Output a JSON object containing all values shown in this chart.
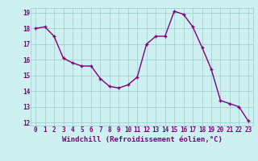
{
  "x": [
    0,
    1,
    2,
    3,
    4,
    5,
    6,
    7,
    8,
    9,
    10,
    11,
    12,
    13,
    14,
    15,
    16,
    17,
    18,
    19,
    20,
    21,
    22,
    23
  ],
  "y": [
    18.0,
    18.1,
    17.5,
    16.1,
    15.8,
    15.6,
    15.6,
    14.8,
    14.3,
    14.2,
    14.4,
    14.9,
    17.0,
    17.5,
    17.5,
    19.1,
    18.9,
    18.1,
    16.8,
    15.4,
    13.4,
    13.2,
    13.0,
    12.1
  ],
  "line_color": "#800080",
  "marker_color": "#800080",
  "bg_color": "#cff0f0",
  "grid_color": "#99cccc",
  "xlabel": "Windchill (Refroidissement éolien,°C)",
  "xlabel_color": "#800080",
  "tick_color": "#800080",
  "ylim": [
    12,
    19
  ],
  "xlim": [
    -0.5,
    23.5
  ],
  "yticks": [
    12,
    13,
    14,
    15,
    16,
    17,
    18,
    19
  ],
  "xticks": [
    0,
    1,
    2,
    3,
    4,
    5,
    6,
    7,
    8,
    9,
    10,
    11,
    12,
    13,
    14,
    15,
    16,
    17,
    18,
    19,
    20,
    21,
    22,
    23
  ],
  "line_width": 1.0,
  "marker_size": 3.0,
  "tick_fontsize": 5.5,
  "xlabel_fontsize": 6.5
}
